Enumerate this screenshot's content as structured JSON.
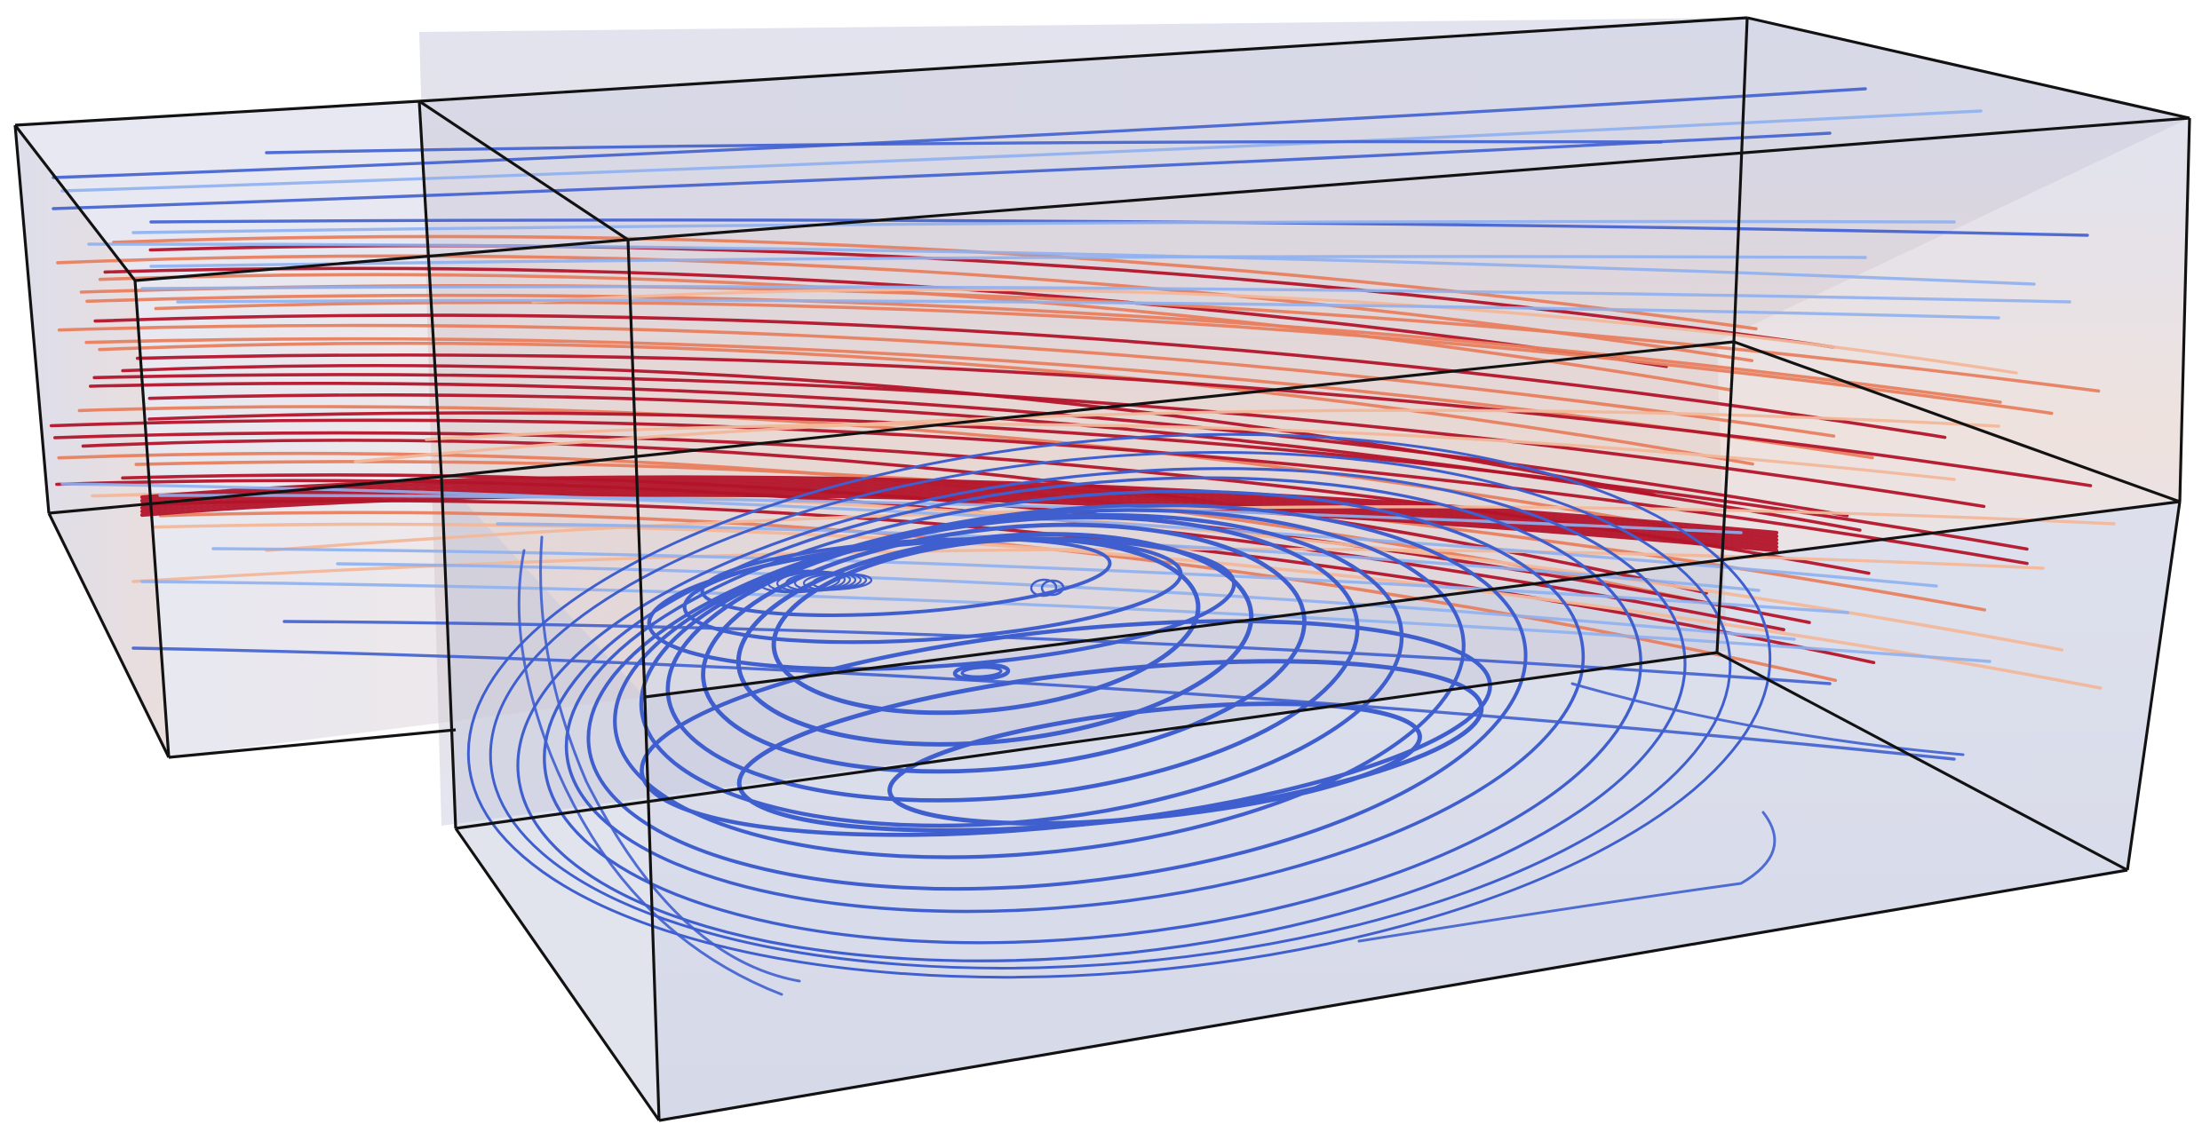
{
  "scene": {
    "description_visible_text": "",
    "colors": {
      "background": "#ffffff",
      "box_fill_tint": "#c4c8dc",
      "box_edge": "#111111",
      "stream_fast": "#b3142a",
      "stream_mid": "#e8805f",
      "stream_light": "#f2b79a",
      "stream_slow_light": "#8fb0ee",
      "stream_slow": "#3f5fcf"
    },
    "colormap": "coolwarm",
    "subject": "backward-facing-step-streamlines",
    "icons": []
  }
}
